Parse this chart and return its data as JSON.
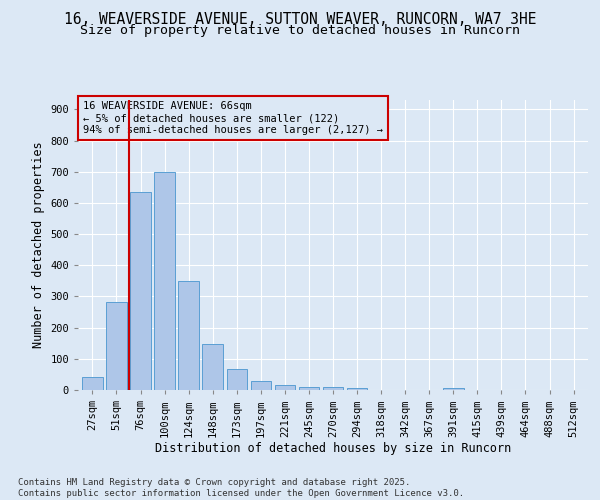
{
  "title_line1": "16, WEAVERSIDE AVENUE, SUTTON WEAVER, RUNCORN, WA7 3HE",
  "title_line2": "Size of property relative to detached houses in Runcorn",
  "xlabel": "Distribution of detached houses by size in Runcorn",
  "ylabel": "Number of detached properties",
  "footer_line1": "Contains HM Land Registry data © Crown copyright and database right 2025.",
  "footer_line2": "Contains public sector information licensed under the Open Government Licence v3.0.",
  "categories": [
    "27sqm",
    "51sqm",
    "76sqm",
    "100sqm",
    "124sqm",
    "148sqm",
    "173sqm",
    "197sqm",
    "221sqm",
    "245sqm",
    "270sqm",
    "294sqm",
    "318sqm",
    "342sqm",
    "367sqm",
    "391sqm",
    "415sqm",
    "439sqm",
    "464sqm",
    "488sqm",
    "512sqm"
  ],
  "values": [
    43,
    283,
    635,
    700,
    351,
    147,
    67,
    29,
    16,
    11,
    10,
    6,
    0,
    0,
    0,
    8,
    0,
    0,
    0,
    0,
    0
  ],
  "bar_color": "#aec6e8",
  "bar_edge_color": "#5a9fd4",
  "background_color": "#dce8f5",
  "plot_bg_color": "#dce8f5",
  "grid_color": "#ffffff",
  "vline_x": 1.5,
  "vline_color": "#cc0000",
  "annotation_text": "16 WEAVERSIDE AVENUE: 66sqm\n← 5% of detached houses are smaller (122)\n94% of semi-detached houses are larger (2,127) →",
  "annotation_box_color": "#cc0000",
  "ylim": [
    0,
    930
  ],
  "yticks": [
    0,
    100,
    200,
    300,
    400,
    500,
    600,
    700,
    800,
    900
  ],
  "title_fontsize": 10.5,
  "subtitle_fontsize": 9.5,
  "axis_label_fontsize": 8.5,
  "tick_fontsize": 7.5,
  "annotation_fontsize": 7.5,
  "footer_fontsize": 6.5
}
